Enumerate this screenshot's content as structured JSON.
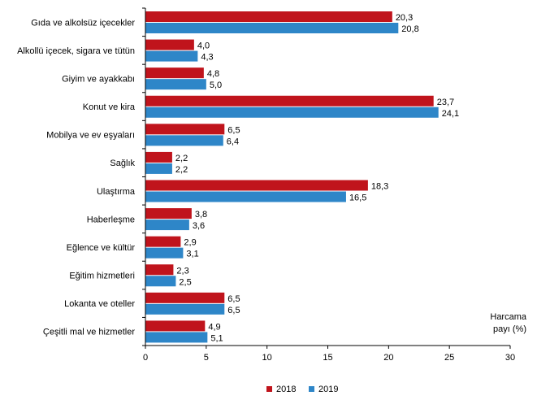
{
  "chart_data": {
    "type": "bar",
    "orientation": "horizontal",
    "categories": [
      "Gıda ve alkolsüz içecekler",
      "Alkollü içecek, sigara ve tütün",
      "Giyim ve ayakkabı",
      "Konut ve kira",
      "Mobilya ve ev eşyaları",
      "Sağlık",
      "Ulaştırma",
      "Haberleşme",
      "Eğlence ve kültür",
      "Eğitim hizmetleri",
      "Lokanta ve oteller",
      "Çeşitli mal ve hizmetler"
    ],
    "series": [
      {
        "name": "2018",
        "color": "#C0141C",
        "values": [
          20.3,
          4.0,
          4.8,
          23.7,
          6.5,
          2.2,
          18.3,
          3.8,
          2.9,
          2.3,
          6.5,
          4.9
        ],
        "labels": [
          "20,3",
          "4,0",
          "4,8",
          "23,7",
          "6,5",
          "2,2",
          "18,3",
          "3,8",
          "2,9",
          "2,3",
          "6,5",
          "4,9"
        ]
      },
      {
        "name": "2019",
        "color": "#2E86C8",
        "values": [
          20.8,
          4.3,
          5.0,
          24.1,
          6.4,
          2.2,
          16.5,
          3.6,
          3.1,
          2.5,
          6.5,
          5.1
        ],
        "labels": [
          "20,8",
          "4,3",
          "5,0",
          "24,1",
          "6,4",
          "2,2",
          "16,5",
          "3,6",
          "3,1",
          "2,5",
          "6,5",
          "5,1"
        ]
      }
    ],
    "xlim": [
      0,
      30
    ],
    "xticks": [
      "0",
      "5",
      "10",
      "15",
      "20",
      "25",
      "30"
    ],
    "xlabel_lines": [
      "Harcama",
      "payı  (%)"
    ],
    "grid": false,
    "legend_position": "bottom"
  }
}
